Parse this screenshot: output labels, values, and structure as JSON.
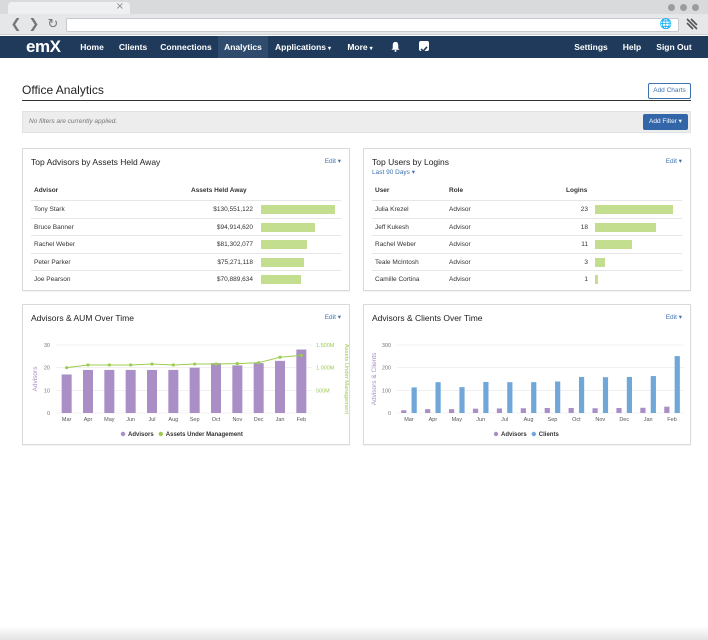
{
  "browser": {
    "back_icon": "chevron-left-icon",
    "forward_icon": "chevron-right-icon",
    "reload_icon": "reload-icon",
    "tab_close": "×",
    "url": ""
  },
  "nav": {
    "logo": "emX",
    "items": [
      {
        "label": "Home"
      },
      {
        "label": "Clients"
      },
      {
        "label": "Connections"
      },
      {
        "label": "Analytics",
        "active": true
      },
      {
        "label": "Applications",
        "caret": true
      },
      {
        "label": "More",
        "caret": true
      }
    ],
    "right_items": [
      {
        "label": "Settings"
      },
      {
        "label": "Help"
      },
      {
        "label": "Sign Out"
      }
    ],
    "caret_glyph": "▾",
    "colors": {
      "bar": "#1f3a5a",
      "active": "#2f4c6e"
    }
  },
  "page": {
    "title": "Office Analytics",
    "add_charts_label": "Add Charts",
    "filter_text": "No filters are currently applied.",
    "add_filter_label": "Add Filter ▾"
  },
  "panels": {
    "top_advisors": {
      "title": "Top Advisors by Assets Held Away",
      "edit": "Edit ▾",
      "headers": {
        "advisor": "Advisor",
        "assets": "Assets Held Away"
      },
      "rows": [
        {
          "name": "Tony Stark",
          "value": "$130,551,122",
          "fraction": 1.0
        },
        {
          "name": "Bruce Banner",
          "value": "$94,914,620",
          "fraction": 0.727
        },
        {
          "name": "Rachel Weber",
          "value": "$81,302,077",
          "fraction": 0.623
        },
        {
          "name": "Peter Parker",
          "value": "$75,271,118",
          "fraction": 0.577
        },
        {
          "name": "Joe Pearson",
          "value": "$70,889,634",
          "fraction": 0.543
        }
      ],
      "bar_color": "#c3de8f"
    },
    "top_users": {
      "title": "Top Users by Logins",
      "subtitle": "Last 90 Days ▾",
      "edit": "Edit ▾",
      "headers": {
        "user": "User",
        "role": "Role",
        "logins": "Logins"
      },
      "rows": [
        {
          "name": "Julia Krezel",
          "role": "Advisor",
          "logins": "23",
          "fraction": 1.0
        },
        {
          "name": "Jeff Kukesh",
          "role": "Advisor",
          "logins": "18",
          "fraction": 0.783
        },
        {
          "name": "Rachel Weber",
          "role": "Advisor",
          "logins": "11",
          "fraction": 0.478
        },
        {
          "name": "Teale McIntosh",
          "role": "Advisor",
          "logins": "3",
          "fraction": 0.13
        },
        {
          "name": "Camille Cortina",
          "role": "Advisor",
          "logins": "1",
          "fraction": 0.043
        }
      ]
    },
    "advisors_aum": {
      "title": "Advisors & AUM Over Time",
      "edit": "Edit ▾"
    },
    "advisors_clients": {
      "title": "Advisors & Clients Over Time",
      "edit": "Edit ▾"
    }
  },
  "chart_data": [
    {
      "type": "bar",
      "title": "Advisors & AUM Over Time",
      "categories": [
        "Mar",
        "Apr",
        "May",
        "Jun",
        "Jul",
        "Aug",
        "Sep",
        "Oct",
        "Nov",
        "Dec",
        "Jan",
        "Feb"
      ],
      "ylabel": "Advisors",
      "y2label": "Assets Under Management",
      "ylim": [
        0,
        30
      ],
      "yticks": [
        "0",
        "10",
        "20",
        "30"
      ],
      "y2ticks": [
        "500M",
        "1.000M",
        "1.500M"
      ],
      "y2lim": [
        0,
        1500
      ],
      "series": [
        {
          "name": "Advisors",
          "kind": "bar",
          "color": "#a98fc6",
          "values": [
            17,
            19,
            19,
            19,
            19,
            19,
            20,
            22,
            21,
            22,
            23,
            28
          ]
        },
        {
          "name": "Assets Under Management",
          "kind": "line",
          "axis": "right",
          "color": "#9ccc4f",
          "values": [
            1000,
            1060,
            1060,
            1060,
            1080,
            1060,
            1080,
            1080,
            1090,
            1110,
            1230,
            1270
          ]
        }
      ],
      "legend": "bottom",
      "grid": true
    },
    {
      "type": "bar",
      "title": "Advisors & Clients Over Time",
      "categories": [
        "Mar",
        "Apr",
        "May",
        "Jun",
        "Jul",
        "Aug",
        "Sep",
        "Oct",
        "Nov",
        "Dec",
        "Jan",
        "Feb"
      ],
      "ylabel": "Advisors & Clients",
      "ylim": [
        0,
        300
      ],
      "yticks": [
        "0",
        "100",
        "200",
        "300"
      ],
      "series": [
        {
          "name": "Advisors",
          "color": "#a98fc6",
          "values": [
            12,
            17,
            17,
            19,
            20,
            21,
            22,
            22,
            21,
            22,
            23,
            28
          ]
        },
        {
          "name": "Clients",
          "color": "#6ea7d8",
          "values": [
            113,
            136,
            114,
            137,
            136,
            136,
            139,
            159,
            158,
            159,
            163,
            251
          ]
        }
      ],
      "legend": "bottom",
      "grid": true
    }
  ]
}
